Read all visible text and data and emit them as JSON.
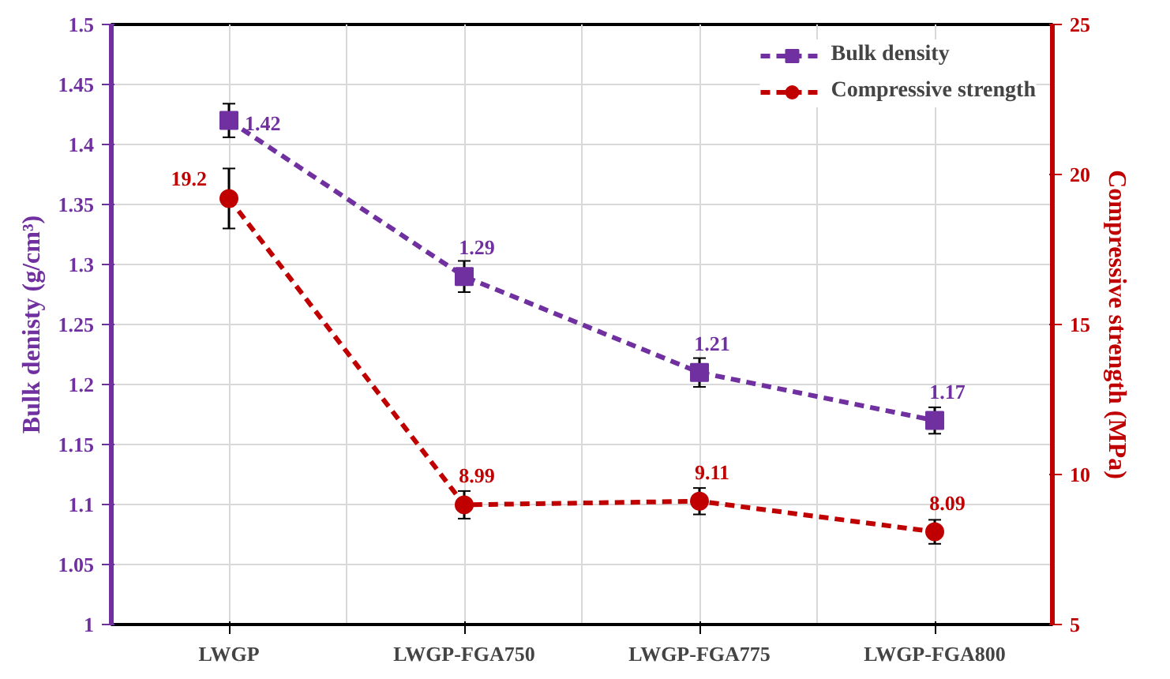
{
  "chart_data": {
    "type": "line",
    "categories": [
      "LWGP",
      "LWGP-FGA750",
      "LWGP-FGA775",
      "LWGP-FGA800"
    ],
    "ylabel": "Bulk denisty (g/cm³)",
    "y2label": "Compressive strength (MPa)",
    "ylim": [
      1,
      1.5
    ],
    "yticks": [
      1,
      1.05,
      1.1,
      1.15,
      1.2,
      1.25,
      1.3,
      1.35,
      1.4,
      1.45,
      1.5
    ],
    "y2lim": [
      5,
      25
    ],
    "y2ticks": [
      5,
      10,
      15,
      20,
      25
    ],
    "series": [
      {
        "name": "Bulk density",
        "color": "#7030a0",
        "marker": "square",
        "values": [
          1.42,
          1.29,
          1.21,
          1.17
        ],
        "errors": [
          0.014,
          0.013,
          0.012,
          0.011
        ]
      },
      {
        "name": "Compressive strength",
        "color": "#c00000",
        "marker": "circle",
        "axis": "y2",
        "values": [
          19.2,
          8.99,
          9.11,
          8.09
        ],
        "errors": [
          1.0,
          0.46,
          0.44,
          0.4
        ]
      }
    ],
    "line_style": "dashed",
    "data_labels": true,
    "grid": true,
    "legend": "top right"
  }
}
